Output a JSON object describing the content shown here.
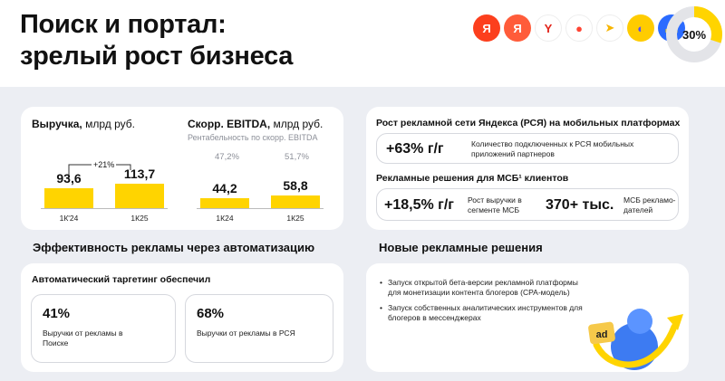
{
  "header": {
    "title_line1": "Поиск и портал:",
    "title_line2": "зрелый рост бизнеса",
    "donut_percent": 30,
    "donut_label": "30%",
    "logos": [
      {
        "icon": "yandex-logo-icon",
        "glyph": "Я",
        "bg": "#fc3f1d",
        "fg": "#ffffff"
      },
      {
        "icon": "yandex-browser-icon",
        "glyph": "Я",
        "bg": "#ff5c3a",
        "fg": "#ffffff"
      },
      {
        "icon": "yandex-y-icon",
        "glyph": "Y",
        "bg": "#ffffff",
        "fg": "#e2231a"
      },
      {
        "icon": "maps-pin-icon",
        "glyph": "●",
        "bg": "#ffffff",
        "fg": "#f43"
      },
      {
        "icon": "navigator-arrow-icon",
        "glyph": "➤",
        "bg": "#ffffff",
        "fg": "#f7b500"
      },
      {
        "icon": "alice-icon",
        "glyph": "◐",
        "bg": "#ffcc00",
        "fg": "#5b4cf6"
      },
      {
        "icon": "zen-icon",
        "glyph": "▬",
        "bg": "#2b6bff",
        "fg": "#ffd400"
      }
    ]
  },
  "revenue": {
    "title_bold": "Выручка,",
    "title_rest": " млрд руб.",
    "growth_label": "+21%",
    "chart_data": {
      "type": "bar",
      "categories": [
        "1К'24",
        "1К25"
      ],
      "values": [
        93.6,
        113.7
      ],
      "value_labels": [
        "93,6",
        "113,7"
      ],
      "ylim": [
        0,
        200
      ]
    }
  },
  "ebitda": {
    "title_bold": "Скорр. EBITDA,",
    "title_rest": " млрд руб.",
    "subtitle": "Рентабельность по скорр. EBITDA",
    "margins": [
      "47,2%",
      "51,7%"
    ],
    "chart_data": {
      "type": "bar",
      "categories": [
        "1К24",
        "1К25"
      ],
      "values": [
        44.2,
        58.8
      ],
      "value_labels": [
        "44,2",
        "58,8"
      ],
      "ylim": [
        0,
        200
      ]
    }
  },
  "rsya": {
    "title": "Рост рекламной сети Яндекса (РСЯ) на мобильных платформах",
    "value": "+63% г/г",
    "desc": "Количество подключенных к РСЯ мобильных приложений партнеров"
  },
  "smb": {
    "title": "Рекламные решения для МСБ¹ клиентов",
    "value1": "+18,5% г/г",
    "desc1": "Рост выручки в сегменте МСБ",
    "value2": "370+ тыс.",
    "desc2": "МСБ рекламо-дателей"
  },
  "efficiency": {
    "heading": "Эффективность рекламы через автоматизацию",
    "card_title": "Автоматический таргетинг обеспечил",
    "kpis": [
      {
        "value": "41%",
        "caption": "Выручки от рекламы в Поиске"
      },
      {
        "value": "68%",
        "caption": "Выручки от рекламы в РСЯ"
      }
    ]
  },
  "new_solutions": {
    "heading": "Новые рекламные решения",
    "bullets": [
      "Запуск открытой бета-версии рекламной платформы для монетизации контента блогеров (CPA-модель)",
      "Запуск собственных аналитических инструментов для блогеров в мессенджерах"
    ],
    "badge": "ad"
  },
  "colors": {
    "accent": "#ffd400",
    "panel_bg": "#eceef3",
    "muted_text": "#8c8f98"
  }
}
